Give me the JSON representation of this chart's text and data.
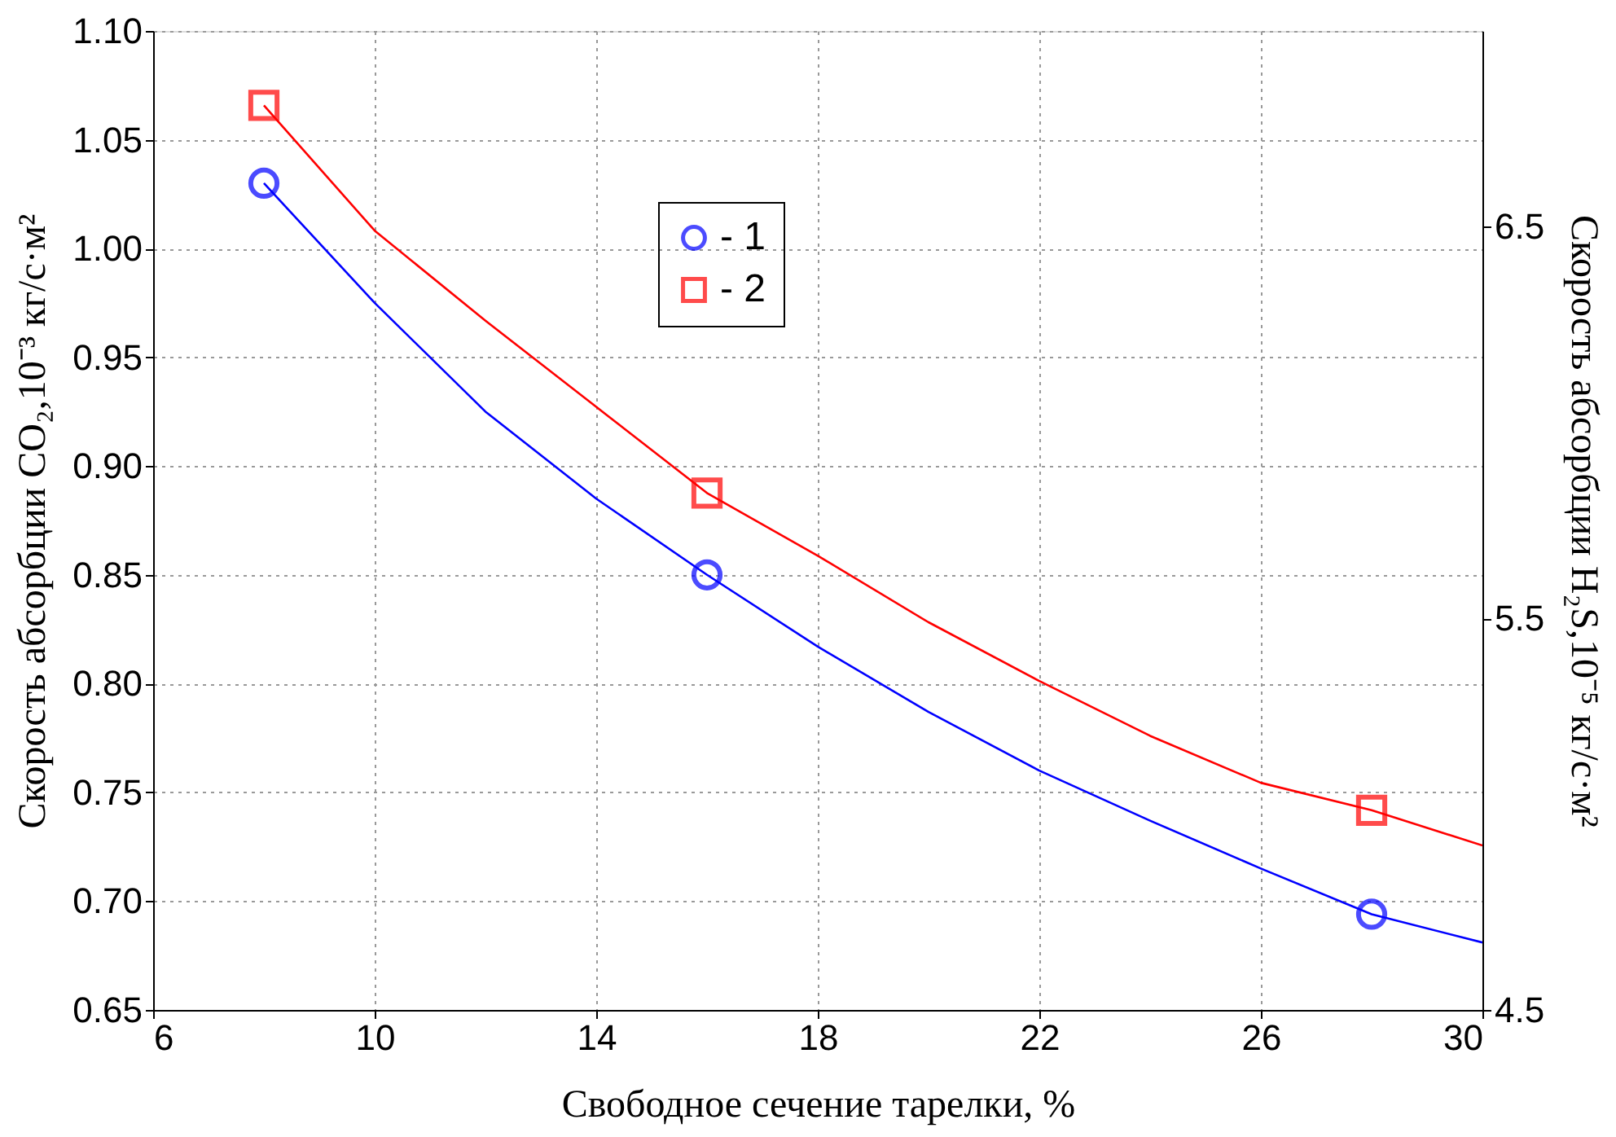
{
  "chart_data": {
    "type": "scatter",
    "xlabel": "Свободное сечение тарелки,  %",
    "ylabel": "Скорость абсорбции CO₂,10⁻³ кг/с·м²",
    "y2label": "Скорость абсорбции H₂S,10⁻⁵ кг/с·м²",
    "xlim": [
      6,
      30
    ],
    "xticks": [
      6,
      10,
      14,
      18,
      22,
      26,
      30
    ],
    "ylim": [
      0.65,
      1.1
    ],
    "yticks": [
      {
        "value": 0.65,
        "label": "0.65"
      },
      {
        "value": 0.7,
        "label": "0.70"
      },
      {
        "value": 0.75,
        "label": "0.75"
      },
      {
        "value": 0.8,
        "label": "0.80"
      },
      {
        "value": 0.85,
        "label": "0.85"
      },
      {
        "value": 0.9,
        "label": "0.90"
      },
      {
        "value": 0.95,
        "label": "0.95"
      },
      {
        "value": 1.0,
        "label": "1.00"
      },
      {
        "value": 1.05,
        "label": "1.05"
      },
      {
        "value": 1.1,
        "label": "1.10"
      }
    ],
    "y2lim": [
      4.5,
      7.0
    ],
    "y2ticks": [
      4.5,
      5.5,
      6.5
    ],
    "grid": true,
    "legend": "top",
    "line_style": "solid",
    "series": [
      {
        "type": "line",
        "color": "#0000ff",
        "x": [
          8,
          10,
          12,
          14,
          16,
          18,
          20,
          22,
          24,
          26,
          28,
          30
        ],
        "values": [
          1.03,
          0.975,
          0.925,
          0.885,
          0.85,
          0.817,
          0.787,
          0.76,
          0.737,
          0.715,
          0.694,
          0.681
        ]
      },
      {
        "type": "line",
        "axis": "y2",
        "color": "#ff0000",
        "x": [
          8,
          10,
          12,
          14,
          16,
          18,
          20,
          22,
          24,
          26,
          28,
          30
        ],
        "values": [
          6.81,
          6.49,
          6.26,
          6.04,
          5.82,
          5.66,
          5.49,
          5.34,
          5.2,
          5.08,
          5.01,
          4.92
        ]
      },
      {
        "name": "- 1",
        "color": "#0000ff",
        "marker": "circle",
        "x": [
          8,
          16,
          28
        ],
        "values": [
          1.03,
          0.85,
          0.694
        ]
      },
      {
        "name": "- 2",
        "axis": "y2",
        "color": "#ff0000",
        "marker": "square",
        "x": [
          8,
          16,
          28
        ],
        "values": [
          6.81,
          5.82,
          5.01
        ]
      }
    ]
  }
}
